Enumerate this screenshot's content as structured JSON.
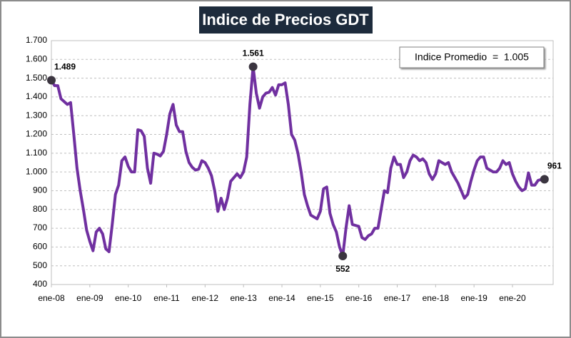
{
  "chart_data": {
    "type": "line",
    "title": "Indice de Precios GDT",
    "average_label": "Indice Promedio  =  1.005",
    "x": [
      "2008-01",
      "2008-02",
      "2008-03",
      "2008-04",
      "2008-05",
      "2008-06",
      "2008-07",
      "2008-08",
      "2008-09",
      "2008-10",
      "2008-11",
      "2008-12",
      "2009-01",
      "2009-02",
      "2009-03",
      "2009-04",
      "2009-05",
      "2009-06",
      "2009-07",
      "2009-08",
      "2009-09",
      "2009-10",
      "2009-11",
      "2009-12",
      "2010-01",
      "2010-02",
      "2010-03",
      "2010-04",
      "2010-05",
      "2010-06",
      "2010-07",
      "2010-08",
      "2010-09",
      "2010-10",
      "2010-11",
      "2010-12",
      "2011-01",
      "2011-02",
      "2011-03",
      "2011-04",
      "2011-05",
      "2011-06",
      "2011-07",
      "2011-08",
      "2011-09",
      "2011-10",
      "2011-11",
      "2011-12",
      "2012-01",
      "2012-02",
      "2012-03",
      "2012-04",
      "2012-05",
      "2012-06",
      "2012-07",
      "2012-08",
      "2012-09",
      "2012-10",
      "2012-11",
      "2012-12",
      "2013-01",
      "2013-02",
      "2013-03",
      "2013-04",
      "2013-05",
      "2013-06",
      "2013-07",
      "2013-08",
      "2013-09",
      "2013-10",
      "2013-11",
      "2013-12",
      "2014-01",
      "2014-02",
      "2014-03",
      "2014-04",
      "2014-05",
      "2014-06",
      "2014-07",
      "2014-08",
      "2014-09",
      "2014-10",
      "2014-11",
      "2014-12",
      "2015-01",
      "2015-02",
      "2015-03",
      "2015-04",
      "2015-05",
      "2015-06",
      "2015-07",
      "2015-08",
      "2015-09",
      "2015-10",
      "2015-11",
      "2015-12",
      "2016-01",
      "2016-02",
      "2016-03",
      "2016-04",
      "2016-05",
      "2016-06",
      "2016-07",
      "2016-08",
      "2016-09",
      "2016-10",
      "2016-11",
      "2016-12",
      "2017-01",
      "2017-02",
      "2017-03",
      "2017-04",
      "2017-05",
      "2017-06",
      "2017-07",
      "2017-08",
      "2017-09",
      "2017-10",
      "2017-11",
      "2017-12",
      "2018-01",
      "2018-02",
      "2018-03",
      "2018-04",
      "2018-05",
      "2018-06",
      "2018-07",
      "2018-08",
      "2018-09",
      "2018-10",
      "2018-11",
      "2018-12",
      "2019-01",
      "2019-02",
      "2019-03",
      "2019-04",
      "2019-05",
      "2019-06",
      "2019-07",
      "2019-08",
      "2019-09",
      "2019-10",
      "2019-11",
      "2019-12",
      "2020-01",
      "2020-02",
      "2020-03",
      "2020-04",
      "2020-05",
      "2020-06",
      "2020-07",
      "2020-08",
      "2020-09",
      "2020-10",
      "2020-11"
    ],
    "series": [
      {
        "color": "#7030a0",
        "values": [
          1489,
          1460,
          1460,
          1390,
          1375,
          1360,
          1370,
          1200,
          1020,
          900,
          800,
          690,
          630,
          580,
          680,
          700,
          670,
          590,
          575,
          720,
          880,
          930,
          1060,
          1080,
          1030,
          1000,
          1000,
          1225,
          1220,
          1190,
          1020,
          940,
          1100,
          1095,
          1085,
          1110,
          1200,
          1310,
          1360,
          1250,
          1215,
          1215,
          1110,
          1050,
          1025,
          1010,
          1015,
          1060,
          1050,
          1020,
          980,
          900,
          790,
          860,
          800,
          860,
          950,
          970,
          990,
          970,
          1000,
          1080,
          1360,
          1561,
          1420,
          1340,
          1400,
          1420,
          1425,
          1450,
          1410,
          1465,
          1465,
          1475,
          1360,
          1200,
          1170,
          1100,
          1000,
          880,
          820,
          770,
          760,
          750,
          790,
          910,
          920,
          780,
          720,
          680,
          600,
          552,
          700,
          820,
          720,
          715,
          710,
          650,
          640,
          660,
          670,
          700,
          700,
          800,
          900,
          890,
          1020,
          1080,
          1040,
          1040,
          970,
          1000,
          1060,
          1090,
          1080,
          1060,
          1070,
          1050,
          990,
          960,
          990,
          1060,
          1050,
          1040,
          1050,
          1000,
          970,
          940,
          900,
          860,
          880,
          950,
          1010,
          1060,
          1080,
          1080,
          1020,
          1010,
          1000,
          1000,
          1020,
          1060,
          1040,
          1050,
          990,
          950,
          920,
          900,
          910,
          995,
          930,
          930,
          955,
          960,
          961
        ]
      }
    ],
    "annotations": [
      {
        "x": "2008-01",
        "label": "1.489"
      },
      {
        "x": "2013-04",
        "label": "1.561"
      },
      {
        "x": "2015-08",
        "label": "552"
      },
      {
        "x": "2020-11",
        "label": "961"
      }
    ],
    "ylim": [
      400,
      1700
    ],
    "yticks": [
      400,
      500,
      600,
      700,
      800,
      900,
      {
        "value": 1000,
        "label": "1.000"
      },
      {
        "value": 1100,
        "label": "1.100"
      },
      {
        "value": 1200,
        "label": "1.200"
      },
      {
        "value": 1300,
        "label": "1.300"
      },
      {
        "value": 1400,
        "label": "1.400"
      },
      {
        "value": 1500,
        "label": "1.500"
      },
      {
        "value": 1600,
        "label": "1.600"
      },
      {
        "value": 1700,
        "label": "1.700"
      }
    ],
    "xticks": [
      {
        "value": "2008-01",
        "label": "ene-08"
      },
      {
        "value": "2009-01",
        "label": "ene-09"
      },
      {
        "value": "2010-01",
        "label": "ene-10"
      },
      {
        "value": "2011-01",
        "label": "ene-11"
      },
      {
        "value": "2012-01",
        "label": "ene-12"
      },
      {
        "value": "2013-01",
        "label": "ene-13"
      },
      {
        "value": "2014-01",
        "label": "ene-14"
      },
      {
        "value": "2015-01",
        "label": "ene-15"
      },
      {
        "value": "2016-01",
        "label": "ene-16"
      },
      {
        "value": "2017-01",
        "label": "ene-17"
      },
      {
        "value": "2018-01",
        "label": "ene-18"
      },
      {
        "value": "2019-01",
        "label": "ene-19"
      },
      {
        "value": "2020-01",
        "label": "ene-20"
      }
    ],
    "grid": true
  }
}
